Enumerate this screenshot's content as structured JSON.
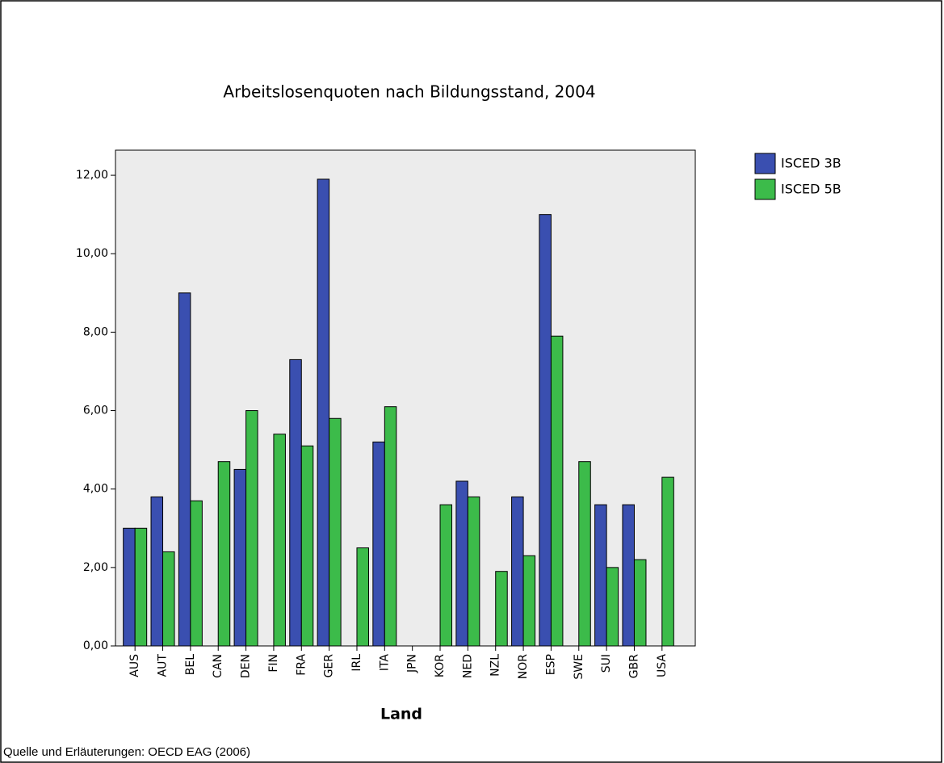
{
  "chart_data": {
    "type": "bar",
    "title": "Arbeitslosenquoten nach Bildungsstand, 2004",
    "x_label": "Land",
    "source": "Quelle und Erläuterungen: OECD EAG (2006)",
    "categories": [
      "AUS",
      "AUT",
      "BEL",
      "CAN",
      "DEN",
      "FIN",
      "FRA",
      "GER",
      "IRL",
      "ITA",
      "JPN",
      "KOR",
      "NED",
      "NZL",
      "NOR",
      "ESP",
      "SWE",
      "SUI",
      "GBR",
      "USA"
    ],
    "series": [
      {
        "name": "ISCED 3B",
        "color": "#3a4fb0",
        "values": [
          3.0,
          3.8,
          9.0,
          null,
          4.5,
          null,
          7.3,
          11.9,
          null,
          5.2,
          null,
          null,
          4.2,
          null,
          3.8,
          11.0,
          null,
          3.6,
          3.6,
          null
        ]
      },
      {
        "name": "ISCED 5B",
        "color": "#3cbb4a",
        "values": [
          3.0,
          2.4,
          3.7,
          4.7,
          6.0,
          5.4,
          5.1,
          5.8,
          2.5,
          6.1,
          null,
          3.6,
          3.8,
          1.9,
          2.3,
          7.9,
          4.7,
          2.0,
          2.2,
          4.3
        ]
      }
    ],
    "ylim": [
      0,
      12.64
    ],
    "yticks": [
      {
        "value": 0,
        "label": "0,00"
      },
      {
        "value": 2,
        "label": "2,00"
      },
      {
        "value": 4,
        "label": "4,00"
      },
      {
        "value": 6,
        "label": "6,00"
      },
      {
        "value": 8,
        "label": "8,00"
      },
      {
        "value": 10,
        "label": "10,00"
      },
      {
        "value": 12,
        "label": "12,00"
      }
    ],
    "legend": "right"
  }
}
